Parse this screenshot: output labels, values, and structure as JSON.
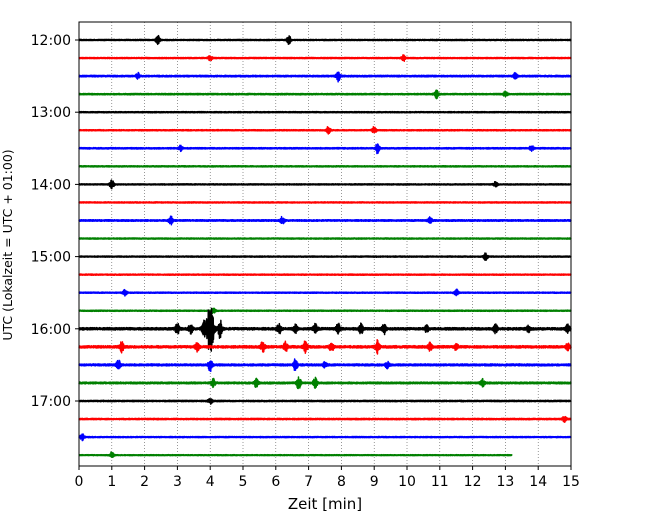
{
  "chart_data": {
    "type": "line",
    "title": "",
    "xlabel": "Zeit  [min]",
    "ylabel": "UTC (Lokalzeit = UTC + 01:00)",
    "xlim": [
      0,
      15
    ],
    "x_ticks": [
      "0",
      "1",
      "2",
      "3",
      "4",
      "5",
      "6",
      "7",
      "8",
      "9",
      "10",
      "11",
      "12",
      "13",
      "14",
      "15"
    ],
    "y_tick_labels": [
      {
        "row": 0,
        "label": "12:00"
      },
      {
        "row": 4,
        "label": "13:00"
      },
      {
        "row": 8,
        "label": "14:00"
      },
      {
        "row": 12,
        "label": "15:00"
      },
      {
        "row": 16,
        "label": "16:00"
      },
      {
        "row": 20,
        "label": "17:00"
      }
    ],
    "grid": "vertical dotted at each minute",
    "trace_colors": [
      "#000000",
      "#ff0000",
      "#0000ff",
      "#008000"
    ],
    "traces": [
      {
        "start": "12:00",
        "color": "#000000",
        "end_min": 15,
        "noise": 0.6,
        "events": [
          {
            "t": 2.4,
            "amp": 4.5
          },
          {
            "t": 6.4,
            "amp": 4.5
          }
        ]
      },
      {
        "start": "12:15",
        "color": "#ff0000",
        "end_min": 15,
        "noise": 0.6,
        "events": [
          {
            "t": 4.0,
            "amp": 2.5
          },
          {
            "t": 9.9,
            "amp": 3
          }
        ]
      },
      {
        "start": "12:30",
        "color": "#0000ff",
        "end_min": 15,
        "noise": 0.8,
        "events": [
          {
            "t": 1.8,
            "amp": 3
          },
          {
            "t": 7.9,
            "amp": 5
          },
          {
            "t": 13.3,
            "amp": 3
          }
        ]
      },
      {
        "start": "12:45",
        "color": "#008000",
        "end_min": 15,
        "noise": 0.7,
        "events": [
          {
            "t": 10.9,
            "amp": 4
          },
          {
            "t": 13.0,
            "amp": 2.5
          }
        ]
      },
      {
        "start": "13:00",
        "color": "#000000",
        "end_min": 15,
        "noise": 0.6,
        "events": []
      },
      {
        "start": "13:15",
        "color": "#ff0000",
        "end_min": 15,
        "noise": 0.6,
        "events": [
          {
            "t": 7.6,
            "amp": 4
          },
          {
            "t": 9.0,
            "amp": 3.5
          }
        ]
      },
      {
        "start": "13:30",
        "color": "#0000ff",
        "end_min": 15,
        "noise": 0.7,
        "events": [
          {
            "t": 3.1,
            "amp": 3
          },
          {
            "t": 9.1,
            "amp": 5
          },
          {
            "t": 13.8,
            "amp": 3
          }
        ]
      },
      {
        "start": "13:45",
        "color": "#008000",
        "end_min": 15,
        "noise": 0.6,
        "events": []
      },
      {
        "start": "14:00",
        "color": "#000000",
        "end_min": 15,
        "noise": 0.6,
        "events": [
          {
            "t": 1.0,
            "amp": 5
          },
          {
            "t": 12.7,
            "amp": 2.5
          }
        ]
      },
      {
        "start": "14:15",
        "color": "#ff0000",
        "end_min": 15,
        "noise": 0.6,
        "events": []
      },
      {
        "start": "14:30",
        "color": "#0000ff",
        "end_min": 15,
        "noise": 0.8,
        "events": [
          {
            "t": 2.8,
            "amp": 4
          },
          {
            "t": 6.2,
            "amp": 4
          },
          {
            "t": 10.7,
            "amp": 3
          }
        ]
      },
      {
        "start": "14:45",
        "color": "#008000",
        "end_min": 15,
        "noise": 0.6,
        "events": []
      },
      {
        "start": "15:00",
        "color": "#000000",
        "end_min": 15,
        "noise": 0.6,
        "events": [
          {
            "t": 12.4,
            "amp": 4
          }
        ]
      },
      {
        "start": "15:15",
        "color": "#ff0000",
        "end_min": 15,
        "noise": 0.6,
        "events": []
      },
      {
        "start": "15:30",
        "color": "#0000ff",
        "end_min": 15,
        "noise": 0.6,
        "events": [
          {
            "t": 1.4,
            "amp": 3
          },
          {
            "t": 11.5,
            "amp": 3.5
          }
        ]
      },
      {
        "start": "15:45",
        "color": "#008000",
        "end_min": 15,
        "noise": 0.6,
        "events": [
          {
            "t": 4.1,
            "amp": 3
          }
        ]
      },
      {
        "start": "16:00",
        "color": "#000000",
        "end_min": 15,
        "noise": 1.2,
        "events": [
          {
            "t": 3.0,
            "amp": 5
          },
          {
            "t": 3.4,
            "amp": 5
          },
          {
            "t": 3.8,
            "amp": 8
          },
          {
            "t": 4.0,
            "amp": 26
          },
          {
            "t": 4.3,
            "amp": 9
          },
          {
            "t": 6.1,
            "amp": 5
          },
          {
            "t": 6.6,
            "amp": 4
          },
          {
            "t": 7.2,
            "amp": 5
          },
          {
            "t": 7.9,
            "amp": 5
          },
          {
            "t": 8.6,
            "amp": 5
          },
          {
            "t": 9.3,
            "amp": 5
          },
          {
            "t": 10.6,
            "amp": 3
          },
          {
            "t": 12.7,
            "amp": 4
          },
          {
            "t": 13.7,
            "amp": 3
          },
          {
            "t": 14.9,
            "amp": 4
          }
        ]
      },
      {
        "start": "16:15",
        "color": "#ff0000",
        "end_min": 15,
        "noise": 1.2,
        "events": [
          {
            "t": 1.3,
            "amp": 5
          },
          {
            "t": 3.6,
            "amp": 4
          },
          {
            "t": 5.6,
            "amp": 5
          },
          {
            "t": 6.3,
            "amp": 5
          },
          {
            "t": 6.9,
            "amp": 6
          },
          {
            "t": 7.7,
            "amp": 5
          },
          {
            "t": 9.1,
            "amp": 6
          },
          {
            "t": 10.7,
            "amp": 4
          },
          {
            "t": 11.5,
            "amp": 3
          },
          {
            "t": 14.9,
            "amp": 3
          }
        ]
      },
      {
        "start": "16:30",
        "color": "#0000ff",
        "end_min": 15,
        "noise": 1.0,
        "events": [
          {
            "t": 1.2,
            "amp": 5
          },
          {
            "t": 4.0,
            "amp": 6
          },
          {
            "t": 6.6,
            "amp": 6
          },
          {
            "t": 7.5,
            "amp": 3
          },
          {
            "t": 9.4,
            "amp": 3
          }
        ]
      },
      {
        "start": "16:45",
        "color": "#008000",
        "end_min": 15,
        "noise": 0.9,
        "events": [
          {
            "t": 4.1,
            "amp": 4
          },
          {
            "t": 5.4,
            "amp": 4
          },
          {
            "t": 6.7,
            "amp": 7
          },
          {
            "t": 7.2,
            "amp": 5
          },
          {
            "t": 12.3,
            "amp": 4
          }
        ]
      },
      {
        "start": "17:00",
        "color": "#000000",
        "end_min": 15,
        "noise": 0.7,
        "events": [
          {
            "t": 4.0,
            "amp": 3
          }
        ]
      },
      {
        "start": "17:15",
        "color": "#ff0000",
        "end_min": 15,
        "noise": 0.7,
        "events": [
          {
            "t": 14.8,
            "amp": 3
          }
        ]
      },
      {
        "start": "17:30",
        "color": "#0000ff",
        "end_min": 15,
        "noise": 0.6,
        "events": [
          {
            "t": 0.1,
            "amp": 3
          }
        ]
      },
      {
        "start": "17:45",
        "color": "#008000",
        "end_min": 13.2,
        "noise": 0.5,
        "events": [
          {
            "t": 1.0,
            "amp": 3
          }
        ]
      }
    ]
  }
}
